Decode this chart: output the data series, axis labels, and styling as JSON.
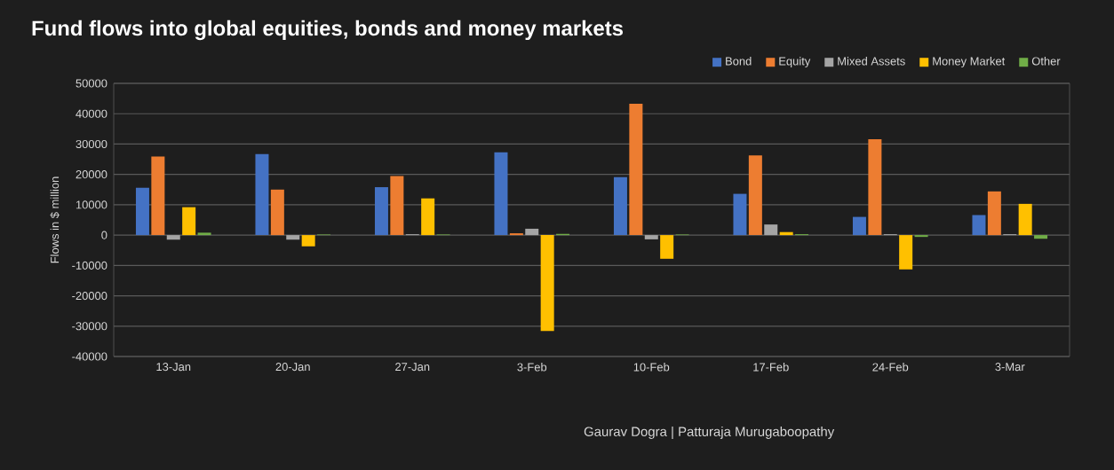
{
  "chart_data": {
    "type": "bar",
    "title": "Fund flows into global equities, bonds and money markets",
    "ylabel": "Flows in $ million",
    "categories": [
      "13-Jan",
      "20-Jan",
      "27-Jan",
      "3-Feb",
      "10-Feb",
      "17-Feb",
      "24-Feb",
      "3-Mar"
    ],
    "series": [
      {
        "name": "Bond",
        "color": "#4472c4",
        "values": [
          15600,
          26700,
          15800,
          27300,
          19100,
          13600,
          6000,
          6600
        ]
      },
      {
        "name": "Equity",
        "color": "#ed7d31",
        "values": [
          25900,
          15000,
          19500,
          600,
          43300,
          26300,
          31600,
          14400
        ]
      },
      {
        "name": "Mixed Assets",
        "color": "#a5a5a5",
        "values": [
          -1500,
          -1500,
          300,
          2100,
          -1400,
          3500,
          300,
          300
        ]
      },
      {
        "name": "Money Market",
        "color": "#ffc000",
        "values": [
          9200,
          -3700,
          12100,
          -31600,
          -7800,
          1000,
          -11300,
          10300
        ]
      },
      {
        "name": "Other",
        "color": "#70ad47",
        "values": [
          800,
          200,
          200,
          400,
          200,
          300,
          -600,
          -1200
        ]
      }
    ],
    "ylim": [
      -40000,
      50000
    ],
    "yticks": [
      -40000,
      -30000,
      -20000,
      -10000,
      0,
      10000,
      20000,
      30000,
      40000,
      50000
    ],
    "grid": "y",
    "legend": "top right",
    "annotations": [
      "Gaurav Dogra | Patturaja Murugaboopathy"
    ]
  }
}
